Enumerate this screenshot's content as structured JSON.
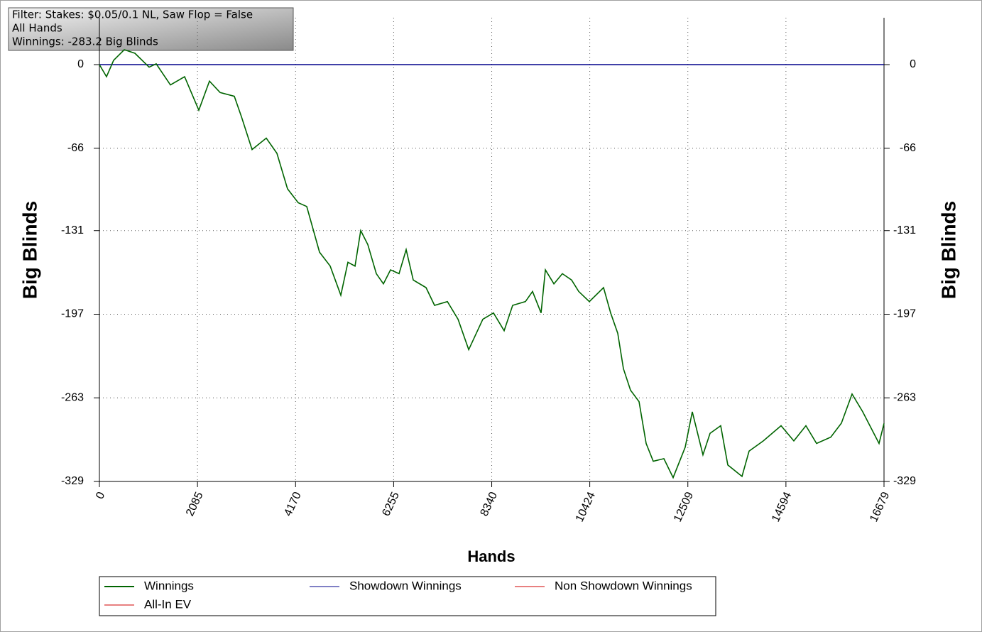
{
  "chart_data": {
    "type": "line",
    "annotations": [
      "Filter: Stakes: $0.05/0.1 NL, Saw Flop = False",
      "All Hands",
      "Winnings: -283.2 Big Blinds"
    ],
    "xlabel": "Hands",
    "ylabel": "Big Blinds",
    "y2label": "Big Blinds",
    "x": [
      0,
      151,
      302,
      528,
      755,
      1057,
      1208,
      1509,
      1811,
      2113,
      2340,
      2566,
      2868,
      3019,
      3245,
      3547,
      3773,
      3999,
      4226,
      4407,
      4528,
      4679,
      4905,
      5132,
      5283,
      5434,
      5555,
      5706,
      5887,
      6038,
      6189,
      6370,
      6521,
      6672,
      6944,
      7125,
      7397,
      7624,
      7850,
      8151,
      8377,
      8604,
      8785,
      9057,
      9208,
      9389,
      9480,
      9661,
      9842,
      10038,
      10189,
      10415,
      10717,
      10868,
      11019,
      11139,
      11290,
      11471,
      11622,
      11773,
      12000,
      12196,
      12453,
      12604,
      12830,
      12981,
      13207,
      13358,
      13660,
      13811,
      14113,
      14490,
      14762,
      15018,
      15245,
      15547,
      15773,
      16000,
      16226,
      16573,
      16679
    ],
    "series": [
      {
        "name": "Winnings",
        "color": "#006400",
        "values": [
          0,
          -9.5,
          3.4,
          11.8,
          9,
          -2,
          0.6,
          -16,
          -9.5,
          -36,
          -13,
          -22,
          -25,
          -41,
          -67,
          -58,
          -70,
          -98,
          -109,
          -112,
          -128,
          -148,
          -159,
          -182,
          -156,
          -159,
          -131,
          -142,
          -165,
          -173,
          -162,
          -165,
          -146,
          -170,
          -176,
          -190,
          -187,
          -201,
          -225,
          -201,
          -196,
          -210,
          -190,
          -187,
          -179,
          -196,
          -162,
          -173,
          -165,
          -170,
          -179,
          -187,
          -176,
          -196,
          -212,
          -240,
          -257,
          -266,
          -299,
          -313,
          -311,
          -326,
          -302,
          -274,
          -308,
          -291,
          -285,
          -316,
          -325,
          -305,
          -297,
          -285,
          -297,
          -285,
          -299,
          -294,
          -283,
          -260,
          -274,
          -299,
          -283.2
        ]
      },
      {
        "name": "Showdown Winnings",
        "color": "#00008b",
        "values": [
          0,
          0,
          0,
          0,
          0,
          0,
          0,
          0,
          0,
          0,
          0,
          0,
          0,
          0,
          0,
          0,
          0,
          0,
          0,
          0,
          0,
          0,
          0,
          0,
          0,
          0,
          0,
          0,
          0,
          0,
          0,
          0,
          0,
          0,
          0,
          0,
          0,
          0,
          0,
          0,
          0,
          0,
          0,
          0,
          0,
          0,
          0,
          0,
          0,
          0,
          0,
          0,
          0,
          0,
          0,
          0,
          0,
          0,
          0,
          0,
          0,
          0,
          0,
          0,
          0,
          0,
          0,
          0,
          0,
          0,
          0,
          0,
          0,
          0,
          0,
          0,
          0,
          0,
          0,
          0,
          0
        ]
      },
      {
        "name": "Non Showdown Winnings",
        "color": "#d00000",
        "values": [
          null,
          null,
          null,
          null,
          null,
          null,
          null,
          null,
          null,
          null,
          null,
          null,
          null,
          null,
          null,
          null,
          null,
          null,
          null,
          null,
          null,
          null,
          null,
          null,
          null,
          null,
          null,
          null,
          null,
          null,
          null,
          null,
          null,
          null,
          null,
          null,
          null,
          null,
          null,
          null,
          null,
          null,
          null,
          null,
          null,
          null,
          null,
          null,
          null,
          null,
          null,
          null,
          null,
          null,
          null,
          null,
          null,
          null,
          null,
          null,
          null,
          null,
          null,
          null,
          null,
          null,
          null,
          null,
          null,
          null,
          null,
          null,
          null,
          null,
          null,
          null,
          null,
          null,
          null,
          null,
          null
        ]
      },
      {
        "name": "All-In EV",
        "color": "#d00000",
        "values": [
          null,
          null,
          null,
          null,
          null,
          null,
          null,
          null,
          null,
          null,
          null,
          null,
          null,
          null,
          null,
          null,
          null,
          null,
          null,
          null,
          null,
          null,
          null,
          null,
          null,
          null,
          null,
          null,
          null,
          null,
          null,
          null,
          null,
          null,
          null,
          null,
          null,
          null,
          null,
          null,
          null,
          null,
          null,
          null,
          null,
          null,
          null,
          null,
          null,
          null,
          null,
          null,
          null,
          null,
          null,
          null,
          null,
          null,
          null,
          null,
          null,
          null,
          null,
          null,
          null,
          null,
          null,
          null,
          null,
          null,
          null,
          null,
          null,
          null,
          null,
          null,
          null,
          null,
          null,
          null,
          null
        ]
      }
    ],
    "xlim": [
      0,
      16679
    ],
    "xticks": [
      0,
      2085,
      4170,
      6255,
      8340,
      10424,
      12509,
      14594,
      16679
    ],
    "ylim": [
      -329,
      37
    ],
    "yticks": [
      0,
      -66,
      -131,
      -197,
      -263,
      -329
    ],
    "y2lim": [
      -329,
      37
    ],
    "y2ticks": [
      0,
      -66,
      -131,
      -197,
      -263,
      -329
    ],
    "grid": true
  }
}
